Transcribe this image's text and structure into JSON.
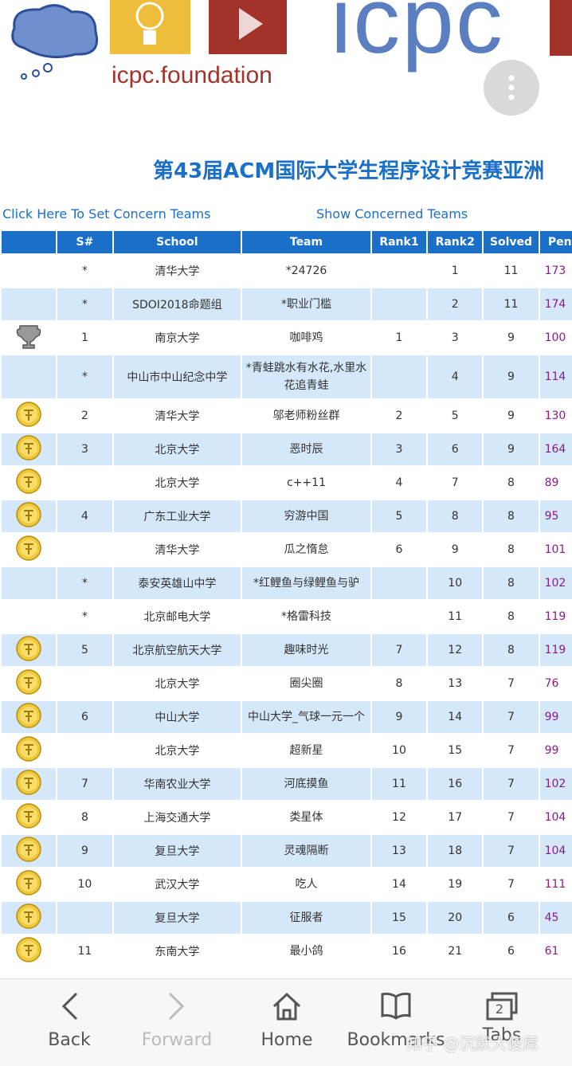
{
  "header": {
    "logo_text": "icpc.foundation",
    "brand": "icpc",
    "title": "第43届ACM国际大学生程序设计竞赛亚洲"
  },
  "links": {
    "set_concern": "Click Here To Set Concern Teams",
    "show_concerned": "Show Concerned Teams"
  },
  "table": {
    "headers": [
      "S#",
      "School",
      "Team",
      "Rank1",
      "Rank2",
      "Solved",
      "Penalty"
    ],
    "rows": [
      {
        "medal": null,
        "cells": [
          "*",
          "清华大学",
          "*24726",
          null,
          1,
          11,
          173
        ]
      },
      {
        "medal": null,
        "cells": [
          "*",
          "SDOI2018命题组",
          "*职业门槛",
          null,
          2,
          11,
          174
        ]
      },
      {
        "medal": "trophy",
        "cells": [
          1,
          "南京大学",
          "咖啡鸡",
          1,
          3,
          9,
          100
        ]
      },
      {
        "medal": null,
        "cells": [
          "*",
          "中山市中山纪念中学",
          "*青蛙跳水有水花,水里水花追青蛙",
          null,
          4,
          9,
          114
        ]
      },
      {
        "medal": "gold",
        "cells": [
          2,
          "清华大学",
          "邬老师粉丝群",
          2,
          5,
          9,
          130
        ]
      },
      {
        "medal": "gold",
        "cells": [
          3,
          "北京大学",
          "恶时辰",
          3,
          6,
          9,
          164
        ]
      },
      {
        "medal": "gold",
        "cells": [
          null,
          "北京大学",
          "c++11",
          4,
          7,
          8,
          89
        ]
      },
      {
        "medal": "gold",
        "cells": [
          4,
          "广东工业大学",
          "穷游中国",
          5,
          8,
          8,
          95
        ]
      },
      {
        "medal": "gold",
        "cells": [
          null,
          "清华大学",
          "瓜之惰怠",
          6,
          9,
          8,
          101
        ]
      },
      {
        "medal": null,
        "cells": [
          "*",
          "泰安英雄山中学",
          "*红鲤鱼与绿鲤鱼与驴",
          null,
          10,
          8,
          102
        ]
      },
      {
        "medal": null,
        "cells": [
          "*",
          "北京邮电大学",
          "*格雷科技",
          null,
          11,
          8,
          119
        ]
      },
      {
        "medal": "gold",
        "cells": [
          5,
          "北京航空航天大学",
          "趣味时光",
          7,
          12,
          8,
          119
        ]
      },
      {
        "medal": "gold",
        "cells": [
          null,
          "北京大学",
          "圈尖圈",
          8,
          13,
          7,
          76
        ]
      },
      {
        "medal": "gold",
        "cells": [
          6,
          "中山大学",
          "中山大学_气球一元一个",
          9,
          14,
          7,
          99
        ]
      },
      {
        "medal": "gold",
        "cells": [
          null,
          "北京大学",
          "超新星",
          10,
          15,
          7,
          99
        ]
      },
      {
        "medal": "gold",
        "cells": [
          7,
          "华南农业大学",
          "河底摸鱼",
          11,
          16,
          7,
          102
        ]
      },
      {
        "medal": "gold",
        "cells": [
          8,
          "上海交通大学",
          "类星体",
          12,
          17,
          7,
          104
        ]
      },
      {
        "medal": "gold",
        "cells": [
          9,
          "复旦大学",
          "灵魂隔断",
          13,
          18,
          7,
          104
        ]
      },
      {
        "medal": "gold",
        "cells": [
          10,
          "武汉大学",
          "吃人",
          14,
          19,
          7,
          111
        ]
      },
      {
        "medal": "gold",
        "cells": [
          null,
          "复旦大学",
          "征服者",
          15,
          20,
          6,
          45
        ]
      },
      {
        "medal": "gold",
        "cells": [
          11,
          "东南大学",
          "最小鸽",
          16,
          21,
          6,
          61
        ]
      }
    ]
  },
  "nav": {
    "back": "Back",
    "forward": "Forward",
    "home": "Home",
    "bookmarks": "Bookmarks",
    "tabs": "Tabs",
    "tabs_count": "2",
    "watermark": "知乎 @沉默大傻屌"
  }
}
